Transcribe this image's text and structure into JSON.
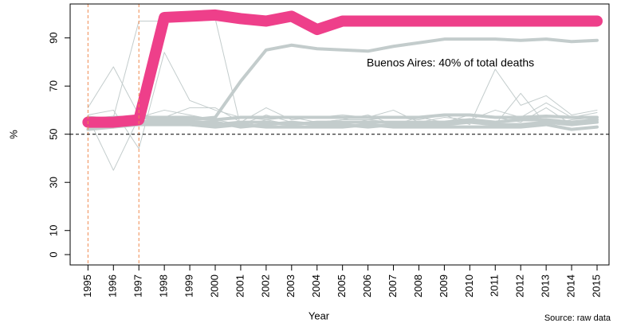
{
  "chart_data": {
    "type": "line",
    "x": [
      1995,
      1996,
      1997,
      1998,
      1999,
      2000,
      2001,
      2002,
      2003,
      2004,
      2005,
      2006,
      2007,
      2008,
      2009,
      2010,
      2011,
      2012,
      2013,
      2014,
      2015
    ],
    "xlim": [
      1994.3,
      2015.47
    ],
    "xticks": [
      1995,
      1996,
      1997,
      1998,
      1999,
      2000,
      2001,
      2002,
      2003,
      2004,
      2005,
      2006,
      2007,
      2008,
      2009,
      2010,
      2011,
      2012,
      2013,
      2014,
      2015
    ],
    "ylim": [
      -4.3,
      104.1
    ],
    "yticks": [
      0,
      10,
      30,
      50,
      70,
      90
    ],
    "x_label": "Year",
    "y_label": "%",
    "source": "Source: raw data",
    "annotation": "Buenos Aires: 40% of total deaths",
    "annotation_color": "#ee3f8a",
    "vlines": [
      1995,
      1997
    ],
    "vline_color": "#f08a50",
    "hline": 50,
    "series": [
      {
        "color": "#c3cccc",
        "width": 1,
        "values": [
          61,
          78,
          58,
          57,
          61,
          61,
          55,
          61,
          56,
          57,
          58,
          57,
          60,
          55,
          57,
          56,
          60,
          57,
          63,
          57,
          59
        ]
      },
      {
        "color": "#c3cccc",
        "width": 1,
        "values": [
          57,
          35,
          57,
          60,
          58,
          56,
          54,
          58,
          55,
          55,
          56,
          56,
          57,
          56,
          58,
          54,
          77,
          62,
          66,
          58,
          60
        ]
      },
      {
        "color": "#c3cccc",
        "width": 1,
        "values": [
          55,
          57,
          97,
          97,
          97,
          98,
          53,
          56,
          54,
          55,
          54,
          56,
          55,
          54,
          55,
          56,
          54,
          67,
          54,
          56,
          57
        ]
      },
      {
        "color": "#c3cccc",
        "width": 1,
        "values": [
          58,
          60,
          44,
          84,
          64,
          60,
          57,
          56,
          57,
          55,
          56,
          58,
          54,
          57,
          55,
          58,
          57,
          55,
          61,
          54,
          55
        ]
      },
      {
        "color": "#c3cccc",
        "width": 4,
        "values": [
          57,
          56,
          57,
          56,
          55,
          55,
          53,
          54,
          55,
          54,
          54,
          53,
          54,
          54,
          54,
          55,
          54,
          54,
          55,
          54,
          55
        ]
      },
      {
        "color": "#c3cccc",
        "width": 4,
        "values": [
          52,
          53,
          54,
          54,
          54,
          53,
          54,
          53,
          53,
          53,
          53,
          54,
          53,
          53,
          53,
          53,
          53,
          53,
          54,
          52,
          53
        ]
      },
      {
        "color": "#c3cccc",
        "width": 4,
        "values": [
          54,
          54,
          55,
          55,
          55,
          54,
          55,
          55,
          54,
          55,
          55,
          55,
          55,
          55,
          55,
          56,
          55,
          56,
          56,
          55,
          56
        ]
      },
      {
        "color": "#c3cccc",
        "width": 4,
        "values": [
          56,
          57,
          57,
          57,
          57,
          56,
          57,
          57,
          57,
          57,
          57,
          57,
          57,
          57,
          58,
          58,
          57,
          57,
          57.5,
          57,
          57
        ]
      },
      {
        "color": "#c3cccc",
        "width": 4,
        "values": [
          54,
          53,
          55,
          56,
          56,
          57,
          72,
          85,
          87,
          85.5,
          85,
          84.5,
          86.5,
          88,
          89.5,
          89.5,
          89.5,
          89,
          89.5,
          88.5,
          89
        ]
      },
      {
        "color": "#ee3f8a",
        "width": 14,
        "values": [
          55,
          55,
          56,
          98.5,
          99,
          99.5,
          98,
          97,
          99,
          93.5,
          97,
          97,
          97,
          97,
          97,
          97,
          97,
          97,
          97,
          97,
          97
        ]
      }
    ]
  }
}
